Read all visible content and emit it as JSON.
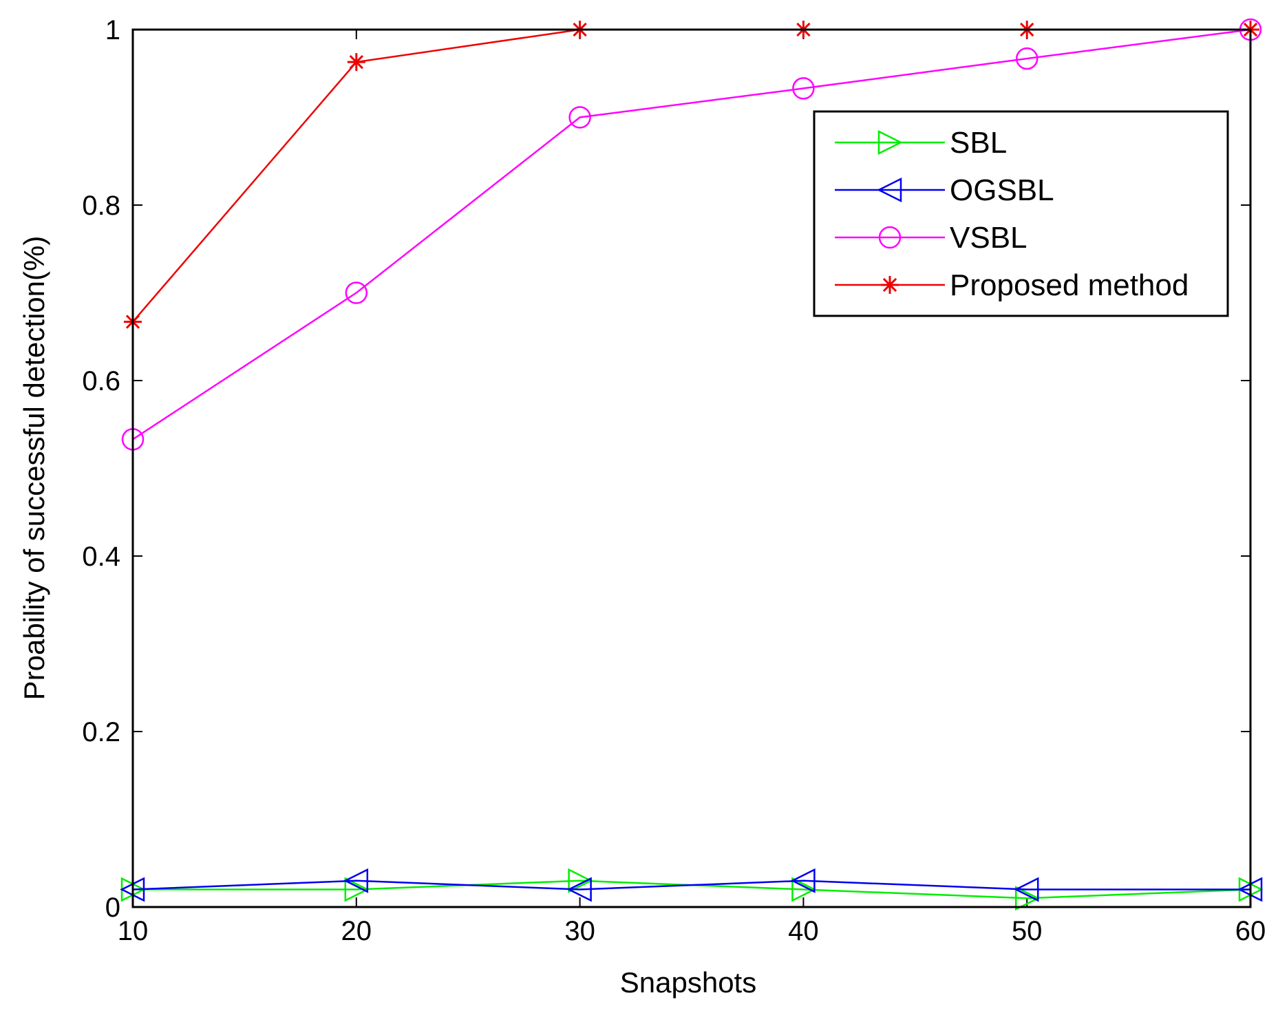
{
  "chart_data": {
    "type": "line",
    "title": "",
    "xlabel": "Snapshots",
    "ylabel": "Proability of successful detection(%)",
    "xlim": [
      10,
      60
    ],
    "ylim": [
      0,
      1
    ],
    "x": [
      10,
      20,
      30,
      40,
      50,
      60
    ],
    "xticks": [
      "10",
      "20",
      "30",
      "40",
      "50",
      "60"
    ],
    "yticks": [
      "0",
      "0.2",
      "0.4",
      "0.6",
      "0.8",
      "1"
    ],
    "grid": false,
    "legend_position": "top-right",
    "series": [
      {
        "name": "SBL",
        "color": "#00ee00",
        "marker": "triangle-right",
        "values": [
          0.02,
          0.02,
          0.03,
          0.02,
          0.01,
          0.02
        ]
      },
      {
        "name": "OGSBL",
        "color": "#0000ee",
        "marker": "triangle-left",
        "values": [
          0.02,
          0.03,
          0.02,
          0.03,
          0.02,
          0.02
        ]
      },
      {
        "name": "VSBL",
        "color": "#ff00ff",
        "marker": "circle",
        "values": [
          0.533,
          0.7,
          0.9,
          0.933,
          0.967,
          1.0
        ]
      },
      {
        "name": "Proposed method",
        "color": "#ee0000",
        "marker": "star",
        "values": [
          0.667,
          0.963,
          1.0,
          1.0,
          1.0,
          1.0
        ]
      }
    ]
  }
}
